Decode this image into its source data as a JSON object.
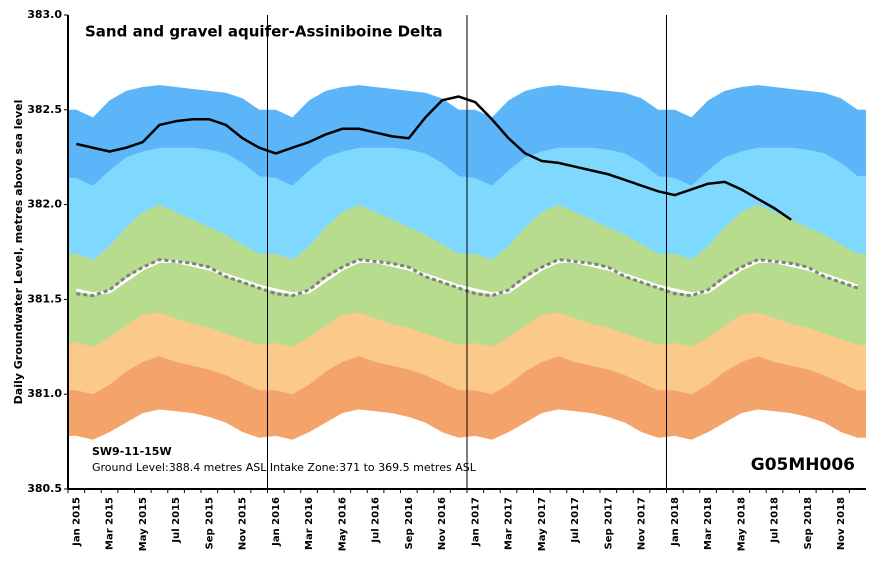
{
  "chart_data": {
    "type": "band-line",
    "title": "Sand and gravel aquifer-Assiniboine Delta",
    "y_label": "Daily Groundwater Level, metres above sea level",
    "annotations": [
      "SW9-11-15W",
      "Ground Level:388.4 metres ASL Intake Zone:371 to 369.5 metres ASL",
      "G05MH006"
    ],
    "categories": [
      "Jan 2015",
      null,
      "Mar 2015",
      null,
      "May 2015",
      null,
      "Jul 2015",
      null,
      "Sep 2015",
      null,
      "Nov 2015",
      null,
      "Jan 2016",
      null,
      "Mar 2016",
      null,
      "May 2016",
      null,
      "Jul 2016",
      null,
      "Sep 2016",
      null,
      "Nov 2016",
      null,
      "Jan 2017",
      null,
      "Mar 2017",
      null,
      "May 2017",
      null,
      "Jul 2017",
      null,
      "Sep 2017",
      null,
      "Nov 2017",
      null,
      "Jan 2018",
      null,
      "Mar 2018",
      null,
      "May 2018",
      null,
      "Jul 2018",
      null,
      "Sep 2018",
      null,
      "Nov 2018",
      null
    ],
    "ylim": [
      380.5,
      383.0
    ],
    "yticks": [
      380.5,
      {
        "value": 381,
        "label": "381.0"
      },
      381.5,
      {
        "value": 382,
        "label": "382.0"
      },
      382.5,
      {
        "value": 383,
        "label": "383.0"
      }
    ],
    "series": [
      {
        "kind": "area",
        "color": "#5bb5f8",
        "values": [
          382.5,
          382.46,
          382.55,
          382.6,
          382.62,
          382.63,
          382.62,
          382.61,
          382.6,
          382.59,
          382.56,
          382.5,
          382.5,
          382.46,
          382.55,
          382.6,
          382.62,
          382.63,
          382.62,
          382.61,
          382.6,
          382.59,
          382.56,
          382.5,
          382.5,
          382.46,
          382.55,
          382.6,
          382.62,
          382.63,
          382.62,
          382.61,
          382.6,
          382.59,
          382.56,
          382.5,
          382.5,
          382.46,
          382.55,
          382.6,
          382.62,
          382.63,
          382.62,
          382.61,
          382.6,
          382.59,
          382.56,
          382.5
        ]
      },
      {
        "kind": "area",
        "color": "#7fd8fd",
        "values": [
          382.14,
          382.1,
          382.18,
          382.25,
          382.28,
          382.3,
          382.3,
          382.3,
          382.29,
          382.27,
          382.22,
          382.15,
          382.14,
          382.1,
          382.18,
          382.25,
          382.28,
          382.3,
          382.3,
          382.3,
          382.29,
          382.27,
          382.22,
          382.15,
          382.14,
          382.1,
          382.18,
          382.25,
          382.28,
          382.3,
          382.3,
          382.3,
          382.29,
          382.27,
          382.22,
          382.15,
          382.14,
          382.1,
          382.18,
          382.25,
          382.28,
          382.3,
          382.3,
          382.3,
          382.29,
          382.27,
          382.22,
          382.15
        ]
      },
      {
        "kind": "area",
        "color": "#b8dc8e",
        "values": [
          381.74,
          381.71,
          381.78,
          381.88,
          381.96,
          382.0,
          381.96,
          381.92,
          381.88,
          381.84,
          381.79,
          381.74,
          381.74,
          381.71,
          381.78,
          381.88,
          381.96,
          382.0,
          381.96,
          381.92,
          381.88,
          381.84,
          381.79,
          381.74,
          381.74,
          381.71,
          381.78,
          381.88,
          381.96,
          382.0,
          381.96,
          381.92,
          381.88,
          381.84,
          381.79,
          381.74,
          381.74,
          381.71,
          381.78,
          381.88,
          381.96,
          382.0,
          381.96,
          381.92,
          381.88,
          381.84,
          381.79,
          381.74
        ]
      },
      {
        "kind": "area",
        "color": "#fbc98a",
        "values": [
          381.27,
          381.25,
          381.3,
          381.36,
          381.42,
          381.43,
          381.4,
          381.37,
          381.35,
          381.32,
          381.29,
          381.26,
          381.27,
          381.25,
          381.3,
          381.36,
          381.42,
          381.43,
          381.4,
          381.37,
          381.35,
          381.32,
          381.29,
          381.26,
          381.27,
          381.25,
          381.3,
          381.36,
          381.42,
          381.43,
          381.4,
          381.37,
          381.35,
          381.32,
          381.29,
          381.26,
          381.27,
          381.25,
          381.3,
          381.36,
          381.42,
          381.43,
          381.4,
          381.37,
          381.35,
          381.32,
          381.29,
          381.26
        ]
      },
      {
        "kind": "area",
        "color": "#f4a46a",
        "values": [
          381.02,
          381.0,
          381.05,
          381.12,
          381.17,
          381.2,
          381.17,
          381.15,
          381.13,
          381.1,
          381.06,
          381.02,
          381.02,
          381.0,
          381.05,
          381.12,
          381.17,
          381.2,
          381.17,
          381.15,
          381.13,
          381.1,
          381.06,
          381.02,
          381.02,
          381.0,
          381.05,
          381.12,
          381.17,
          381.2,
          381.17,
          381.15,
          381.13,
          381.1,
          381.06,
          381.02,
          381.02,
          381.0,
          381.05,
          381.12,
          381.17,
          381.2,
          381.17,
          381.15,
          381.13,
          381.1,
          381.06,
          381.02
        ]
      },
      {
        "kind": "area",
        "color": "#ffffff",
        "values": [
          380.78,
          380.76,
          380.8,
          380.85,
          380.9,
          380.92,
          380.91,
          380.9,
          380.88,
          380.85,
          380.8,
          380.77,
          380.78,
          380.76,
          380.8,
          380.85,
          380.9,
          380.92,
          380.91,
          380.9,
          380.88,
          380.85,
          380.8,
          380.77,
          380.78,
          380.76,
          380.8,
          380.85,
          380.9,
          380.92,
          380.91,
          380.9,
          380.88,
          380.85,
          380.8,
          380.77,
          380.78,
          380.76,
          380.8,
          380.85,
          380.9,
          380.92,
          380.91,
          380.9,
          380.88,
          380.85,
          380.8,
          380.77
        ]
      },
      {
        "kind": "line",
        "color": "#ffffff",
        "width": 3,
        "values": [
          381.55,
          381.53,
          381.54,
          381.6,
          381.66,
          381.7,
          381.7,
          381.68,
          381.66,
          381.63,
          381.6,
          381.57,
          381.55,
          381.53,
          381.54,
          381.6,
          381.66,
          381.7,
          381.7,
          381.68,
          381.66,
          381.63,
          381.6,
          381.57,
          381.55,
          381.53,
          381.54,
          381.6,
          381.66,
          381.7,
          381.7,
          381.68,
          381.66,
          381.63,
          381.6,
          381.57,
          381.55,
          381.53,
          381.54,
          381.6,
          381.66,
          381.7,
          381.7,
          381.68,
          381.66,
          381.63,
          381.6,
          381.57
        ]
      },
      {
        "kind": "line",
        "color": "#808080",
        "width": 3,
        "dashed": true,
        "values": [
          381.53,
          381.52,
          381.55,
          381.62,
          381.67,
          381.71,
          381.7,
          381.69,
          381.67,
          381.62,
          381.59,
          381.56,
          381.53,
          381.52,
          381.55,
          381.62,
          381.67,
          381.71,
          381.7,
          381.69,
          381.67,
          381.62,
          381.59,
          381.56,
          381.53,
          381.52,
          381.55,
          381.62,
          381.67,
          381.71,
          381.7,
          381.69,
          381.67,
          381.62,
          381.59,
          381.56,
          381.53,
          381.52,
          381.55,
          381.62,
          381.67,
          381.71,
          381.7,
          381.69,
          381.67,
          381.62,
          381.59,
          381.56
        ]
      },
      {
        "kind": "line",
        "color": "#000000",
        "width": 2.5,
        "values": [
          382.32,
          382.3,
          382.28,
          382.3,
          382.33,
          382.42,
          382.44,
          382.45,
          382.45,
          382.42,
          382.35,
          382.3,
          382.27,
          382.3,
          382.33,
          382.37,
          382.4,
          382.4,
          382.38,
          382.36,
          382.35,
          382.46,
          382.55,
          382.57,
          382.54,
          382.45,
          382.35,
          382.27,
          382.23,
          382.22,
          382.2,
          382.18,
          382.16,
          382.13,
          382.1,
          382.07,
          382.05,
          382.08,
          382.11,
          382.12,
          382.08,
          382.03,
          381.98,
          381.92,
          null,
          null,
          null,
          null
        ]
      }
    ]
  }
}
